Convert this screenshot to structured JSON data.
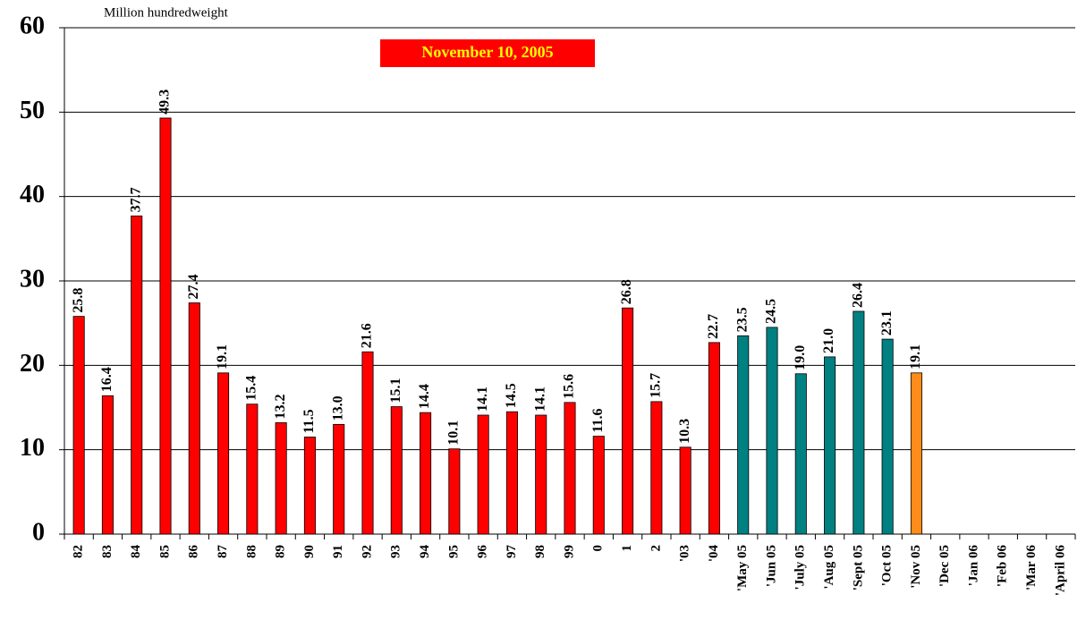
{
  "chart_data": {
    "type": "bar",
    "y_axis_label": "Million hundredweight",
    "annotation": "November 10, 2005",
    "categories": [
      "82",
      "83",
      "84",
      "85",
      "86",
      "87",
      "88",
      "89",
      "90",
      "91",
      "92",
      "93",
      "94",
      "95",
      "96",
      "97",
      "98",
      "99",
      "0",
      "1",
      "2",
      "'03",
      "'04",
      "'May 05",
      "'Jun 05",
      "'July 05",
      "'Aug 05",
      "'Sept 05",
      "'Oct 05",
      "'Nov 05",
      "'Dec 05",
      "'Jan 06",
      "'Feb 06",
      "'Mar 06",
      "'April 06"
    ],
    "values": [
      25.8,
      16.4,
      37.7,
      49.3,
      27.4,
      19.1,
      15.4,
      13.2,
      11.5,
      13.0,
      21.6,
      15.1,
      14.4,
      10.1,
      14.1,
      14.5,
      14.1,
      15.6,
      11.6,
      26.8,
      15.7,
      10.3,
      22.7,
      23.5,
      24.5,
      19.0,
      21.0,
      26.4,
      23.1,
      19.1,
      null,
      null,
      null,
      null,
      null
    ],
    "value_labels": [
      "25.8",
      "16.4",
      "37.7",
      "49.3",
      "27.4",
      "19.1",
      "15.4",
      "13.2",
      "11.5",
      "13.0",
      "21.6",
      "15.1",
      "14.4",
      "10.1",
      "14.1",
      "14.5",
      "14.1",
      "15.6",
      "11.6",
      "26.8",
      "15.7",
      "10.3",
      "22.7",
      "23.5",
      "24.5",
      "19.0",
      "21.0",
      "26.4",
      "23.1",
      "19.1",
      null,
      null,
      null,
      null,
      null
    ],
    "colors": [
      "#ff0000",
      "#ff0000",
      "#ff0000",
      "#ff0000",
      "#ff0000",
      "#ff0000",
      "#ff0000",
      "#ff0000",
      "#ff0000",
      "#ff0000",
      "#ff0000",
      "#ff0000",
      "#ff0000",
      "#ff0000",
      "#ff0000",
      "#ff0000",
      "#ff0000",
      "#ff0000",
      "#ff0000",
      "#ff0000",
      "#ff0000",
      "#ff0000",
      "#ff0000",
      "#008080",
      "#008080",
      "#008080",
      "#008080",
      "#008080",
      "#008080",
      "#ff8c1a",
      null,
      null,
      null,
      null,
      null
    ],
    "ylim": [
      0,
      60
    ],
    "yticks": [
      0,
      10,
      20,
      30,
      40,
      50,
      60
    ],
    "grid": true
  }
}
